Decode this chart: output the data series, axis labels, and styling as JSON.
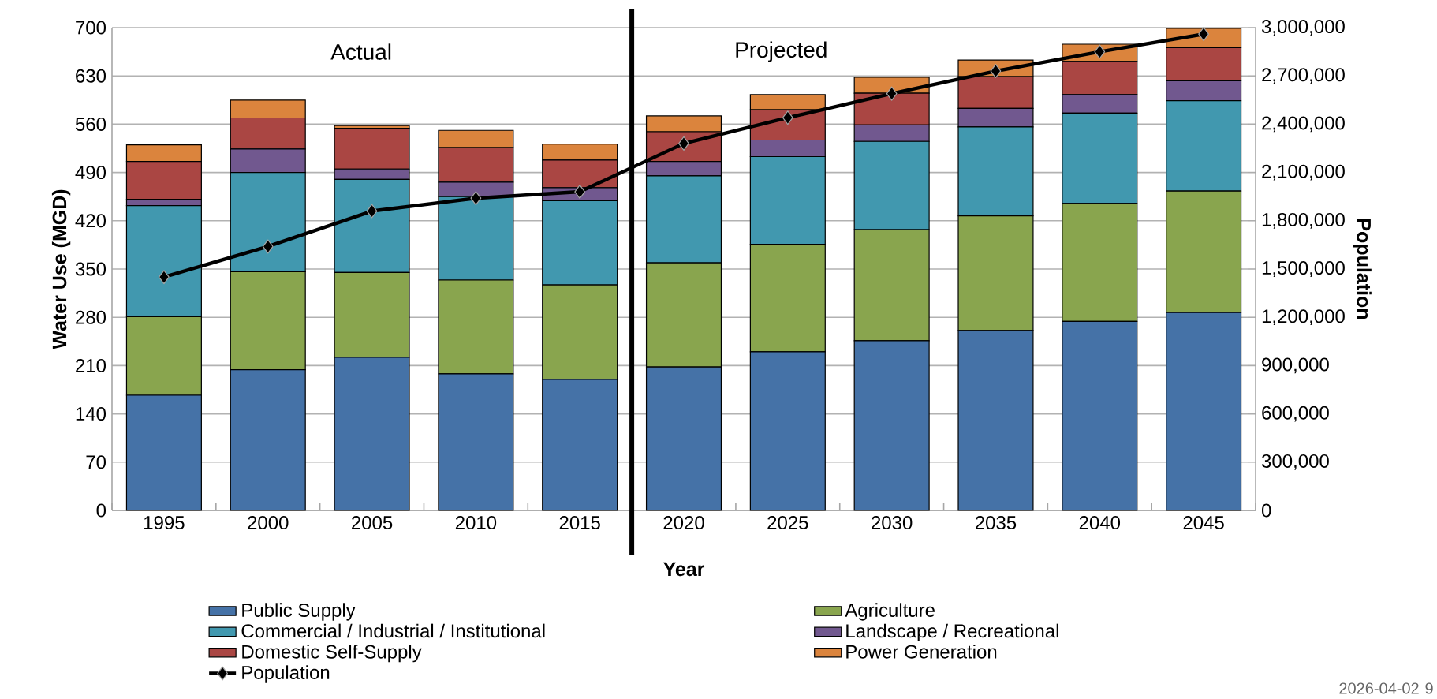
{
  "chart_data": {
    "type": "bar",
    "stacked": true,
    "xlabel": "Year",
    "ylabel": "Water Use (MGD)",
    "y2label": "Population",
    "categories": [
      "1995",
      "2000",
      "2005",
      "2010",
      "2015",
      "2020",
      "2025",
      "2030",
      "2035",
      "2040",
      "2045"
    ],
    "series": [
      {
        "name": "Public Supply",
        "color": "#4572a7",
        "values": [
          167,
          204,
          222,
          198,
          190,
          208,
          230,
          246,
          261,
          274,
          287
        ]
      },
      {
        "name": "Agriculture",
        "color": "#89a54e",
        "values": [
          114,
          142,
          123,
          136,
          137,
          151,
          156,
          161,
          166,
          171,
          176
        ]
      },
      {
        "name": "Commercial / Industrial / Institutional",
        "color": "#4198af",
        "values": [
          161,
          144,
          135,
          121,
          122,
          126,
          127,
          128,
          129,
          131,
          131
        ]
      },
      {
        "name": "Landscape / Recreational",
        "color": "#71588f",
        "values": [
          9,
          34,
          15,
          21,
          19,
          21,
          24,
          24,
          27,
          27,
          29
        ]
      },
      {
        "name": "Domestic Self-Supply",
        "color": "#aa4643",
        "values": [
          55,
          45,
          59,
          50,
          40,
          43,
          44,
          46,
          46,
          48,
          48
        ]
      },
      {
        "name": "Power Generation",
        "color": "#db843d",
        "values": [
          24,
          26,
          4,
          25,
          23,
          23,
          22,
          23,
          24,
          25,
          28
        ]
      },
      {
        "name": "Population",
        "type": "line",
        "axis": "y2",
        "color": "#000000",
        "marker": "diamond",
        "values": [
          1450000,
          1640000,
          1860000,
          1940000,
          1980000,
          2280000,
          2440000,
          2590000,
          2730000,
          2850000,
          2960000
        ]
      }
    ],
    "ylim": [
      0,
      700
    ],
    "yticks": [
      0,
      70,
      140,
      210,
      280,
      350,
      420,
      490,
      560,
      630,
      700
    ],
    "y2lim": [
      0,
      3000000
    ],
    "y2ticks": [
      {
        "value": 0,
        "label": "0"
      },
      {
        "value": 300000,
        "label": "300,000"
      },
      {
        "value": 600000,
        "label": "600,000"
      },
      {
        "value": 900000,
        "label": "900,000"
      },
      {
        "value": 1200000,
        "label": "1,200,000"
      },
      {
        "value": 1500000,
        "label": "1,500,000"
      },
      {
        "value": 1800000,
        "label": "1,800,000"
      },
      {
        "value": 2100000,
        "label": "2,100,000"
      },
      {
        "value": 2400000,
        "label": "2,400,000"
      },
      {
        "value": 2700000,
        "label": "2,700,000"
      },
      {
        "value": 3000000,
        "label": "3,000,000"
      }
    ],
    "grid": "y",
    "legend": "bottom",
    "ref_lines": [
      {
        "axis": "x",
        "value": "2015",
        "color": "#000000"
      }
    ],
    "annotations": [
      "Actual",
      "Projected",
      "2026-04-02",
      "9"
    ]
  }
}
